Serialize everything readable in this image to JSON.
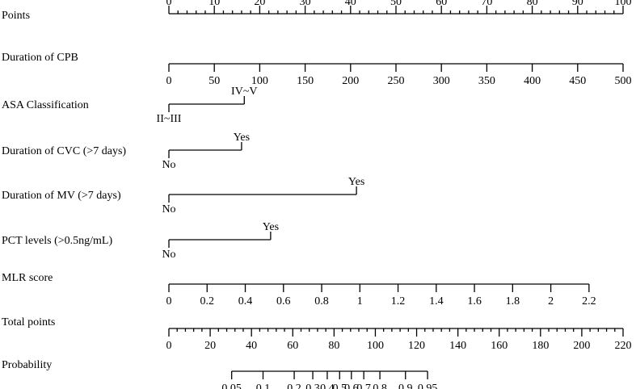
{
  "chart_data": {
    "type": "nomogram",
    "rows": [
      {
        "label": "Points",
        "kind": "scale",
        "labels_above": true,
        "min": 0,
        "max": 100,
        "major_ticks": [
          0,
          10,
          20,
          30,
          40,
          50,
          60,
          70,
          80,
          90,
          100
        ],
        "minor_step": 2,
        "tick_labels": [
          "0",
          "10",
          "20",
          "30",
          "40",
          "50",
          "60",
          "70",
          "80",
          "90",
          "100"
        ]
      },
      {
        "label": "Duration of CPB",
        "kind": "scale",
        "min": 0,
        "max": 500,
        "major_ticks": [
          0,
          50,
          100,
          150,
          200,
          250,
          300,
          350,
          400,
          450,
          500
        ],
        "tick_labels": [
          "0",
          "50",
          "100",
          "150",
          "200",
          "250",
          "300",
          "350",
          "400",
          "450",
          "500"
        ],
        "points_at_min": 0,
        "points_at_max": 100
      },
      {
        "label": "ASA Classification",
        "kind": "categorical",
        "categories": [
          {
            "label": "II~III",
            "points": 0,
            "position": "below"
          },
          {
            "label": "IV~V",
            "points": 16.6,
            "position": "above"
          }
        ]
      },
      {
        "label": "Duration of CVC (>7 days)",
        "kind": "categorical",
        "categories": [
          {
            "label": "No",
            "points": 0,
            "position": "below"
          },
          {
            "label": "Yes",
            "points": 16.0,
            "position": "above"
          }
        ]
      },
      {
        "label": "Duration of MV (>7 days)",
        "kind": "categorical",
        "categories": [
          {
            "label": "No",
            "points": 0,
            "position": "below"
          },
          {
            "label": "Yes",
            "points": 41.3,
            "position": "above"
          }
        ]
      },
      {
        "label": "PCT levels (>0.5ng/mL)",
        "kind": "categorical",
        "categories": [
          {
            "label": "No",
            "points": 0,
            "position": "below"
          },
          {
            "label": "Yes",
            "points": 22.4,
            "position": "above"
          }
        ]
      },
      {
        "label": "MLR score",
        "kind": "scale",
        "min": 0,
        "max": 2.2,
        "major_ticks": [
          0,
          0.2,
          0.4,
          0.6,
          0.8,
          1,
          1.2,
          1.4,
          1.6,
          1.8,
          2,
          2.2
        ],
        "tick_labels": [
          "0",
          "0.2",
          "0.4",
          "0.6",
          "0.8",
          "1",
          "1.2",
          "1.4",
          "1.6",
          "1.8",
          "2",
          "2.2"
        ],
        "points_at_min": 0,
        "points_at_max": 92.5
      },
      {
        "label": "Total points",
        "kind": "total",
        "min": 0,
        "max": 220,
        "major_ticks": [
          0,
          20,
          40,
          60,
          80,
          100,
          120,
          140,
          160,
          180,
          200,
          220
        ],
        "minor_step": 4,
        "tick_labels": [
          "0",
          "20",
          "40",
          "60",
          "80",
          "100",
          "120",
          "140",
          "160",
          "180",
          "200",
          "220"
        ]
      },
      {
        "label": "Probability",
        "kind": "probability",
        "ticks": [
          {
            "label": "0.05",
            "total": 30.4
          },
          {
            "label": "0.1",
            "total": 45.6
          },
          {
            "label": "0.2",
            "total": 60.7
          },
          {
            "label": "0.3",
            "total": 69.7
          },
          {
            "label": "0.4",
            "total": 76.7
          },
          {
            "label": "0.5",
            "total": 82.7
          },
          {
            "label": "0.6",
            "total": 88.4
          },
          {
            "label": "0.7",
            "total": 94.4
          },
          {
            "label": "0.8",
            "total": 102.2
          },
          {
            "label": "0.9",
            "total": 114.6
          },
          {
            "label": "0.95",
            "total": 125.3
          }
        ]
      }
    ]
  }
}
